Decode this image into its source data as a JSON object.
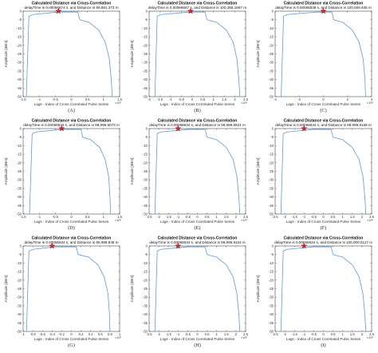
{
  "chart_data": [
    {
      "caption": "(A)",
      "type": "line",
      "title": "Calculated Distance via Cross-Correlation",
      "subtitle": "delayTime is 0.00066674 s, and Distance is 99,881.373 m",
      "xlabel": "Lags - Index of Cross Correlated Pulse Series",
      "ylabel": "Amplitude [dBm]",
      "x_exponent": "×10⁵",
      "xlim": [
        -1.5,
        1.5
      ],
      "ylim": [
        -50,
        0
      ],
      "xticks": [
        "-1.5",
        "-1",
        "-0.5",
        "0",
        "0.5",
        "1",
        "1.5"
      ],
      "yticks": [
        "0",
        "-5",
        "-10",
        "-15",
        "-20",
        "-25",
        "-30",
        "-35",
        "-40",
        "-45",
        "-50"
      ],
      "grid": false,
      "series": [
        {
          "color": "#5b9bd5",
          "x": [
            -1.4,
            -1.32,
            -1.2,
            -0.4,
            0.2,
            0.26,
            0.55,
            0.85,
            1.05,
            1.18,
            1.24,
            1.27
          ],
          "y": [
            -50,
            -3,
            -2,
            -0.5,
            -0.5,
            -5,
            -6.5,
            -11,
            -18,
            -28,
            -40,
            -50
          ]
        }
      ],
      "peak_marker": {
        "x": -0.4,
        "y": 0
      }
    },
    {
      "caption": "(B)",
      "type": "line",
      "title": "Calculated Distance via Cross-Correlation",
      "subtitle": "delayTime is 0.00066667 s, and Distance is 100,366.1667 m",
      "xlabel": "Lags - Index of Cross Correlated Pulse Series",
      "ylabel": "Amplitude [dBm]",
      "x_exponent": "×10⁵",
      "xlim": [
        -2.5,
        2.5
      ],
      "ylim": [
        -50,
        0
      ],
      "xticks": [
        "-2",
        "-1.5",
        "-1",
        "-0.5",
        "0",
        "0.5",
        "1",
        "1.5",
        "2",
        "2.5"
      ],
      "yticks": [
        "0",
        "-5",
        "-10",
        "-15",
        "-20",
        "-25",
        "-30",
        "-35",
        "-40",
        "-45",
        "-50"
      ],
      "grid": false,
      "series": [
        {
          "color": "#5b9bd5",
          "x": [
            -2.2,
            -2.08,
            -1.9,
            -0.35,
            0.4,
            0.5,
            1.0,
            1.5,
            1.85,
            2.05,
            2.15,
            2.2
          ],
          "y": [
            -50,
            -3,
            -2,
            -0.5,
            -0.5,
            -5,
            -6.5,
            -11,
            -18,
            -28,
            -40,
            -50
          ]
        }
      ],
      "peak_marker": {
        "x": -0.35,
        "y": 0
      }
    },
    {
      "caption": "(C)",
      "type": "line",
      "title": "Calculated Distance via Cross-Correlation",
      "subtitle": "delayTime is 0.00066838 s, and Distance is 100,506.936 m",
      "xlabel": "Lags - Index of Cross Correlated Pulse Series",
      "ylabel": "Amplitude [dBm]",
      "x_exponent": "×10⁵",
      "xlim": [
        -4,
        4
      ],
      "ylim": [
        -50,
        0
      ],
      "xticks": [
        "-4",
        "-2",
        "0",
        "2",
        "4"
      ],
      "yticks": [
        "0",
        "-5",
        "-10",
        "-15",
        "-20",
        "-25",
        "-30",
        "-35",
        "-40",
        "-45",
        "-50"
      ],
      "grid": false,
      "series": [
        {
          "color": "#5b9bd5",
          "x": [
            -3.5,
            -3.3,
            -3.0,
            -0.5,
            0.7,
            0.85,
            1.6,
            2.4,
            2.95,
            3.3,
            3.45,
            3.5
          ],
          "y": [
            -50,
            -3,
            -2,
            -0.5,
            -0.5,
            -5,
            -6.5,
            -11,
            -18,
            -28,
            -40,
            -50
          ]
        }
      ],
      "peak_marker": {
        "x": 0,
        "y": 0
      }
    },
    {
      "caption": "(D)",
      "type": "line",
      "title": "Calculated Distance via Cross-Correlation",
      "subtitle": "delayTime is 0.00066634 s, and Distance is 99,999.5073 m",
      "xlabel": "Lags - Index of Cross Correlated Pulse Series",
      "ylabel": "Amplitude [dBm]",
      "x_exponent": "×10⁵",
      "xlim": [
        -1.5,
        1.5
      ],
      "ylim": [
        -50,
        0
      ],
      "xticks": [
        "-1.5",
        "-1",
        "-0.5",
        "0",
        "0.5",
        "1",
        "1.5"
      ],
      "yticks": [
        "0",
        "-5",
        "-10",
        "-15",
        "-20",
        "-25",
        "-30",
        "-35",
        "-40",
        "-45",
        "-50"
      ],
      "grid": false,
      "series": [
        {
          "color": "#5b9bd5",
          "x": [
            -1.3,
            -1.22,
            -1.1,
            -0.3,
            0.3,
            0.35,
            0.6,
            0.88,
            1.05,
            1.16,
            1.2,
            1.22
          ],
          "y": [
            -50,
            -3,
            -2,
            -0.5,
            -0.5,
            -5,
            -6.5,
            -11,
            -18,
            -28,
            -40,
            -50
          ]
        }
      ],
      "peak_marker": {
        "x": -0.3,
        "y": 0
      }
    },
    {
      "caption": "(E)",
      "type": "line",
      "title": "Calculated Distance via Cross-Correlation",
      "subtitle": "delayTime is 0.00066634 s, and Distance is 99,999.6921 m",
      "xlabel": "Lags - Index of Cross Correlated Pulse Series",
      "ylabel": "Amplitude [dBm]",
      "x_exponent": "×10⁵",
      "xlim": [
        -2.5,
        2.5
      ],
      "ylim": [
        -50,
        0
      ],
      "xticks": [
        "-2.5",
        "-2",
        "-1.5",
        "-1",
        "-0.5",
        "0",
        "0.5",
        "1",
        "1.5",
        "2",
        "2.5"
      ],
      "yticks": [
        "0",
        "-5",
        "-10",
        "-15",
        "-20",
        "-25",
        "-30",
        "-35",
        "-40",
        "-45",
        "-50"
      ],
      "grid": false,
      "series": [
        {
          "color": "#5b9bd5",
          "x": [
            -2.2,
            -2.08,
            -1.9,
            -0.5,
            0.4,
            0.5,
            1.0,
            1.5,
            1.85,
            2.05,
            2.15,
            2.2
          ],
          "y": [
            -50,
            -3,
            -2,
            -0.5,
            -0.5,
            -5,
            -6.5,
            -11,
            -18,
            -28,
            -40,
            -50
          ]
        }
      ],
      "peak_marker": {
        "x": -1,
        "y": 0
      }
    },
    {
      "caption": "(F)",
      "type": "line",
      "title": "Calculated Distance via Cross-Correlation",
      "subtitle": "delayTime is 0.00066634 s, and Distance is 99,999.8168 m",
      "xlabel": "Lags - Index of Cross Correlated Pulse Series",
      "ylabel": "Amplitude [dBm]",
      "x_exponent": "×10⁵",
      "xlim": [
        -2.5,
        2.5
      ],
      "ylim": [
        -50,
        0
      ],
      "xticks": [
        "-2.5",
        "-2",
        "-1.5",
        "-1",
        "-0.5",
        "0",
        "0.5",
        "1",
        "1.5",
        "2",
        "2.5"
      ],
      "yticks": [
        "0",
        "-5",
        "-10",
        "-15",
        "-20",
        "-25",
        "-30",
        "-35",
        "-40",
        "-45",
        "-50"
      ],
      "grid": false,
      "series": [
        {
          "color": "#5b9bd5",
          "x": [
            -2.2,
            -2.08,
            -1.9,
            -0.5,
            0.4,
            0.5,
            1.0,
            1.5,
            1.85,
            2.05,
            2.15,
            2.2
          ],
          "y": [
            -50,
            -3,
            -2,
            -0.5,
            -0.5,
            -5,
            -6.5,
            -11,
            -18,
            -28,
            -40,
            -50
          ]
        }
      ],
      "peak_marker": {
        "x": -1,
        "y": 0
      }
    },
    {
      "caption": "(G)",
      "type": "line",
      "title": "Calculated Distance via Cross-Correlation",
      "subtitle": "delayTime is 0.00066634 s, and Distance is 99,999.848 m",
      "xlabel": "Lags - Index of Cross Correlated Pulse Series",
      "ylabel": "Amplitude [dBm]",
      "x_exponent": "×10⁵",
      "xlim": [
        -1,
        1
      ],
      "ylim": [
        -50,
        0
      ],
      "xticks": [
        "-1",
        "-0.8",
        "-0.6",
        "-0.4",
        "-0.2",
        "0",
        "0.2",
        "0.4",
        "0.6",
        "0.8",
        "1"
      ],
      "yticks": [
        "0",
        "-5",
        "-10",
        "-15",
        "-20",
        "-25",
        "-30",
        "-35",
        "-40",
        "-45",
        "-50"
      ],
      "grid": false,
      "series": [
        {
          "color": "#5b9bd5",
          "x": [
            -0.93,
            -0.88,
            -0.8,
            -0.35,
            0.1,
            0.14,
            0.36,
            0.55,
            0.68,
            0.76,
            0.79,
            0.8
          ],
          "y": [
            -50,
            -3,
            -2,
            -0.5,
            -0.5,
            -5,
            -6.5,
            -11,
            -18,
            -28,
            -40,
            -50
          ]
        }
      ],
      "peak_marker": {
        "x": -0.4,
        "y": 0
      }
    },
    {
      "caption": "(H)",
      "type": "line",
      "title": "Calculated Distance via Cross-Correlation",
      "subtitle": "delayTime is 0.00066634 s, and Distance is 99,999.9104 m",
      "xlabel": "Lags - Index of Cross Correlated Pulse Series",
      "ylabel": "Amplitude [dBm]",
      "x_exponent": "×10⁵",
      "xlim": [
        -2.5,
        2.5
      ],
      "ylim": [
        -50,
        0
      ],
      "xticks": [
        "-2.5",
        "-2",
        "-1.5",
        "-1",
        "-0.5",
        "0",
        "0.5",
        "1",
        "1.5",
        "2",
        "2.5"
      ],
      "yticks": [
        "0",
        "-5",
        "-10",
        "-15",
        "-20",
        "-25",
        "-30",
        "-35",
        "-40",
        "-45",
        "-50"
      ],
      "grid": false,
      "series": [
        {
          "color": "#5b9bd5",
          "x": [
            -2.2,
            -2.08,
            -1.9,
            -0.5,
            0.4,
            0.5,
            1.0,
            1.5,
            1.85,
            2.05,
            2.15,
            2.2
          ],
          "y": [
            -50,
            -3,
            -2,
            -0.5,
            -0.5,
            -5,
            -6.5,
            -11,
            -18,
            -28,
            -40,
            -50
          ]
        }
      ],
      "peak_marker": {
        "x": -1,
        "y": 0
      }
    },
    {
      "caption": "(I)",
      "type": "line",
      "title": "Calculated Distance via Cross-Correlation",
      "subtitle": "delayTime is 0.00066634 s, and Distance is 100,000.0117 m",
      "xlabel": "Lags - Index of Cross Correlated Pulse Series",
      "ylabel": "Amplitude [dBm]",
      "x_exponent": "×10⁵",
      "xlim": [
        -2.5,
        2.5
      ],
      "ylim": [
        -50,
        0
      ],
      "xticks": [
        "-2.5",
        "-2",
        "-1.5",
        "-1",
        "-0.5",
        "0",
        "0.5",
        "1",
        "1.5",
        "2",
        "2.5"
      ],
      "yticks": [
        "0",
        "-5",
        "-10",
        "-15",
        "-20",
        "-25",
        "-30",
        "-35",
        "-40",
        "-45",
        "-50"
      ],
      "grid": false,
      "series": [
        {
          "color": "#5b9bd5",
          "x": [
            -2.2,
            -2.08,
            -1.9,
            -0.5,
            0.4,
            0.5,
            1.0,
            1.5,
            1.85,
            2.05,
            2.15,
            2.2
          ],
          "y": [
            -50,
            -3,
            -2,
            -0.5,
            -0.5,
            -5,
            -6.5,
            -11,
            -18,
            -28,
            -40,
            -50
          ]
        }
      ],
      "peak_marker": {
        "x": -1,
        "y": 0
      }
    }
  ],
  "colors": {
    "line": "#5b9bd5",
    "marker_fill": "#e0202a",
    "marker_stroke": "#7a0a10",
    "axes": "#262626"
  }
}
